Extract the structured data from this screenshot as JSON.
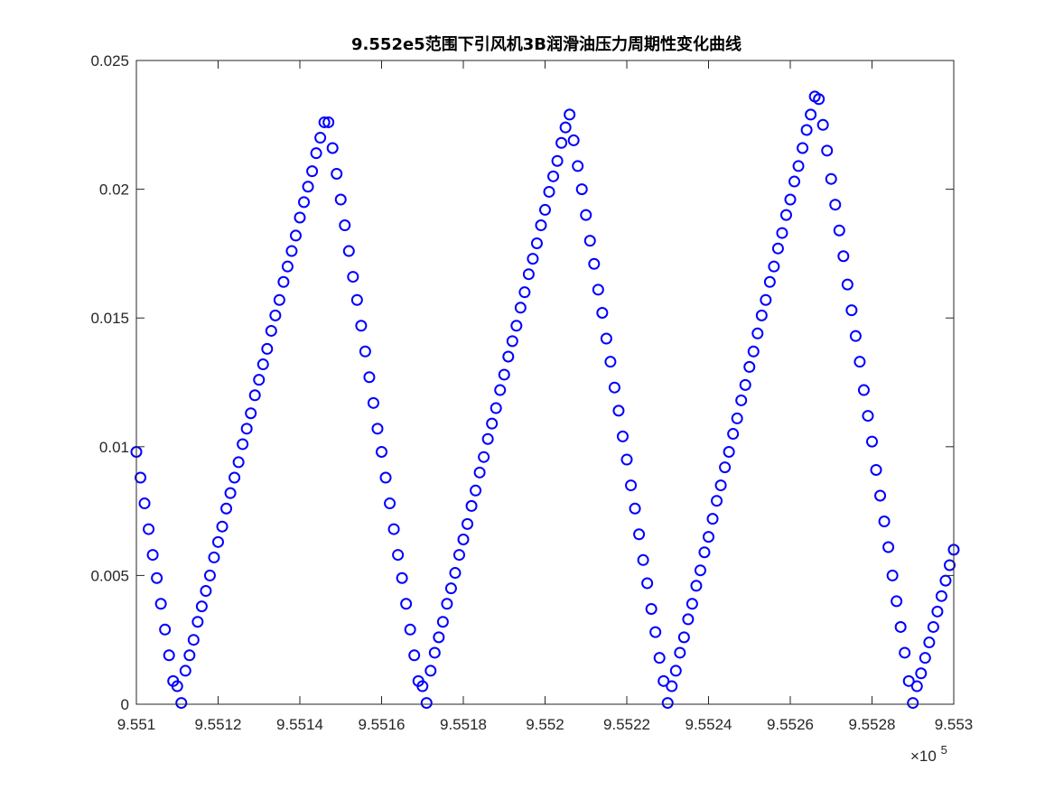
{
  "chart_data": {
    "type": "scatter",
    "title": "9.552e5范围下引风机3B润滑油压力周期性变化曲线",
    "xlabel": "",
    "ylabel": "",
    "x_exponent_label": "×10",
    "x_exponent_power": "5",
    "xlim": [
      955100,
      955300
    ],
    "ylim": [
      0,
      0.025
    ],
    "x_tick_values": [
      955100,
      955120,
      955140,
      955160,
      955180,
      955200,
      955220,
      955240,
      955260,
      955280,
      955300
    ],
    "x_tick_labels": [
      "9.551",
      "9.5512",
      "9.5514",
      "9.5516",
      "9.5518",
      "9.552",
      "9.5522",
      "9.5524",
      "9.5526",
      "9.5528",
      "9.553"
    ],
    "y_tick_values": [
      0,
      0.005,
      0.01,
      0.015,
      0.02,
      0.025
    ],
    "y_tick_labels": [
      "0",
      "0.005",
      "0.01",
      "0.015",
      "0.02",
      "0.025"
    ],
    "grid": false,
    "marker": "circle-open",
    "marker_color": "#0000ff",
    "series": [
      {
        "x": [
          955100,
          955101,
          955102,
          955103,
          955104,
          955105,
          955106,
          955107,
          955108,
          955109,
          955110,
          955111,
          955112,
          955113,
          955114,
          955115,
          955116,
          955117,
          955118,
          955119,
          955120,
          955121,
          955122,
          955123,
          955124,
          955125,
          955126,
          955127,
          955128,
          955129,
          955130,
          955131,
          955132,
          955133,
          955134,
          955135,
          955136,
          955137,
          955138,
          955139,
          955140,
          955141,
          955142,
          955143,
          955144,
          955145,
          955146,
          955147,
          955148,
          955149,
          955150,
          955151,
          955152,
          955153,
          955154,
          955155,
          955156,
          955157,
          955158,
          955159,
          955160,
          955161,
          955162,
          955163,
          955164,
          955165,
          955166,
          955167,
          955168,
          955169,
          955170,
          955171,
          955172,
          955173,
          955174,
          955175,
          955176,
          955177,
          955178,
          955179,
          955180,
          955181,
          955182,
          955183,
          955184,
          955185,
          955186,
          955187,
          955188,
          955189,
          955190,
          955191,
          955192,
          955193,
          955194,
          955195,
          955196,
          955197,
          955198,
          955199,
          955200,
          955201,
          955202,
          955203,
          955204,
          955205,
          955206,
          955207,
          955208,
          955209,
          955210,
          955211,
          955212,
          955213,
          955214,
          955215,
          955216,
          955217,
          955218,
          955219,
          955220,
          955221,
          955222,
          955223,
          955224,
          955225,
          955226,
          955227,
          955228,
          955229,
          955230,
          955231,
          955232,
          955233,
          955234,
          955235,
          955236,
          955237,
          955238,
          955239,
          955240,
          955241,
          955242,
          955243,
          955244,
          955245,
          955246,
          955247,
          955248,
          955249,
          955250,
          955251,
          955252,
          955253,
          955254,
          955255,
          955256,
          955257,
          955258,
          955259,
          955260,
          955261,
          955262,
          955263,
          955264,
          955265,
          955266,
          955267,
          955268,
          955269,
          955270,
          955271,
          955272,
          955273,
          955274,
          955275,
          955276,
          955277,
          955278,
          955279,
          955280,
          955281,
          955282,
          955283,
          955284,
          955285,
          955286,
          955287,
          955288,
          955289,
          955290,
          955291,
          955292,
          955293,
          955294,
          955295,
          955296,
          955297,
          955298,
          955299,
          955300
        ],
        "y": [
          0.0098,
          0.0088,
          0.0078,
          0.0068,
          0.0058,
          0.0049,
          0.0039,
          0.0029,
          0.0019,
          0.0009,
          0.0007,
          5e-05,
          0.0013,
          0.0019,
          0.0025,
          0.0032,
          0.0038,
          0.0044,
          0.005,
          0.0057,
          0.0063,
          0.0069,
          0.0076,
          0.0082,
          0.0088,
          0.0094,
          0.0101,
          0.0107,
          0.0113,
          0.012,
          0.0126,
          0.0132,
          0.0138,
          0.0145,
          0.0151,
          0.0157,
          0.0164,
          0.017,
          0.0176,
          0.0182,
          0.0189,
          0.0195,
          0.0201,
          0.0207,
          0.0214,
          0.022,
          0.0226,
          0.0226,
          0.0216,
          0.0206,
          0.0196,
          0.0186,
          0.0176,
          0.0166,
          0.0157,
          0.0147,
          0.0137,
          0.0127,
          0.0117,
          0.0107,
          0.0098,
          0.0088,
          0.0078,
          0.0068,
          0.0058,
          0.0049,
          0.0039,
          0.0029,
          0.0019,
          0.0009,
          0.0007,
          5e-05,
          0.0013,
          0.002,
          0.0026,
          0.0032,
          0.0039,
          0.0045,
          0.0051,
          0.0058,
          0.0064,
          0.007,
          0.0077,
          0.0083,
          0.009,
          0.0096,
          0.0103,
          0.0109,
          0.0115,
          0.0122,
          0.0128,
          0.0135,
          0.0141,
          0.0147,
          0.0154,
          0.016,
          0.0167,
          0.0173,
          0.0179,
          0.0186,
          0.0192,
          0.0199,
          0.0205,
          0.0211,
          0.0218,
          0.0224,
          0.0229,
          0.0219,
          0.0209,
          0.02,
          0.019,
          0.018,
          0.0171,
          0.0161,
          0.0152,
          0.0142,
          0.0133,
          0.0123,
          0.0114,
          0.0104,
          0.0095,
          0.0085,
          0.0076,
          0.0066,
          0.0056,
          0.0047,
          0.0037,
          0.0028,
          0.0018,
          0.0009,
          5e-05,
          0.0007,
          0.0013,
          0.002,
          0.0026,
          0.0033,
          0.0039,
          0.0046,
          0.0052,
          0.0059,
          0.0065,
          0.0072,
          0.0079,
          0.0085,
          0.0092,
          0.0098,
          0.0105,
          0.0111,
          0.0118,
          0.0124,
          0.0131,
          0.0137,
          0.0144,
          0.0151,
          0.0157,
          0.0164,
          0.017,
          0.0177,
          0.0183,
          0.019,
          0.0196,
          0.0203,
          0.0209,
          0.0216,
          0.0223,
          0.0229,
          0.0236,
          0.0235,
          0.0225,
          0.0215,
          0.0204,
          0.0194,
          0.0184,
          0.0174,
          0.0163,
          0.0153,
          0.0143,
          0.0133,
          0.0122,
          0.0112,
          0.0102,
          0.0091,
          0.0081,
          0.0071,
          0.0061,
          0.005,
          0.004,
          0.003,
          0.002,
          0.0009,
          5e-05,
          0.0007,
          0.0012,
          0.0018,
          0.0024,
          0.003,
          0.0036,
          0.0042,
          0.0048,
          0.0054,
          0.006
        ]
      }
    ]
  }
}
